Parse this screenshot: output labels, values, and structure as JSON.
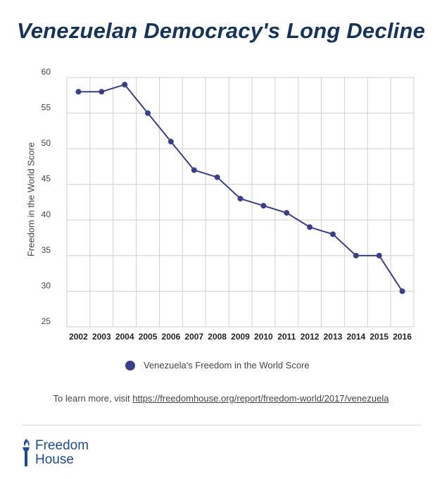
{
  "chart_data": {
    "type": "line",
    "title": "Venezuelan Democracy's Long Decline",
    "xlabel": "",
    "ylabel": "Freedom in the World Score",
    "x": [
      "2002",
      "2003",
      "2004",
      "2005",
      "2006",
      "2007",
      "2008",
      "2009",
      "2010",
      "2011",
      "2012",
      "2013",
      "2014",
      "2015",
      "2016"
    ],
    "series": [
      {
        "name": "Venezuela's Freedom in the World Score",
        "values": [
          58,
          58,
          59,
          55,
          51,
          47,
          46,
          43,
          42,
          41,
          39,
          38,
          35,
          35,
          30
        ]
      }
    ],
    "yticks": [
      "25",
      "30",
      "35",
      "40",
      "45",
      "50",
      "55",
      "60"
    ],
    "ylim": [
      25,
      60
    ],
    "grid": true,
    "legend": "bottom",
    "color": "#3b3f88"
  },
  "footnote": {
    "prefix": "To learn more, visit ",
    "link": "https://freedomhouse.org/report/freedom-world/2017/venezuela"
  },
  "logo": {
    "line1": "Freedom",
    "line2": "House",
    "color": "#1e4b8c"
  }
}
